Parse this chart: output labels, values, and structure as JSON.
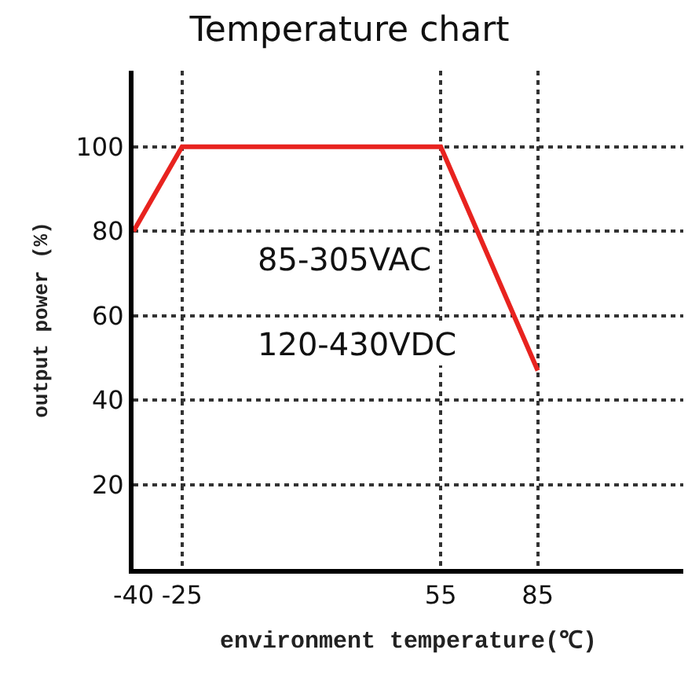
{
  "chart_data": {
    "type": "line",
    "title": "Temperature chart",
    "xlabel": "environment temperature(℃)",
    "ylabel": "output power (%)",
    "x": [
      -40,
      -25,
      55,
      85
    ],
    "series": [
      {
        "color": "#e8231f",
        "values": [
          80,
          100,
          100,
          47
        ]
      }
    ],
    "xlim": [
      -40,
      130
    ],
    "ylim": [
      0,
      118
    ],
    "xticks": [
      -40,
      -25,
      55,
      85
    ],
    "yticks": [
      20,
      40,
      60,
      80,
      100
    ],
    "grid": true,
    "line_style": "solid",
    "marker": "none",
    "annotations": [
      "85-305VAC",
      "120-430VDC"
    ]
  }
}
